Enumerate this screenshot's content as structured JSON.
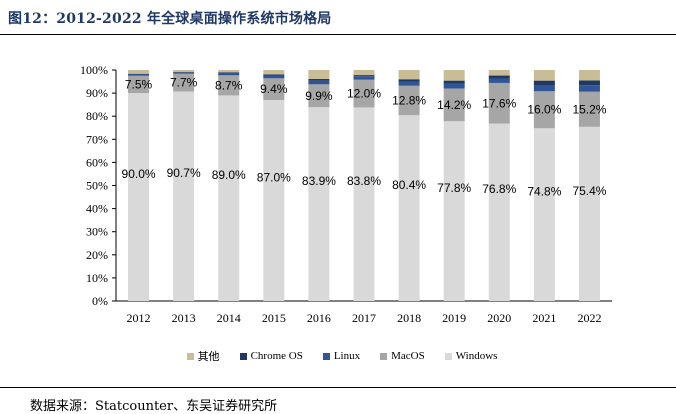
{
  "figure": {
    "title": "图12：2012-2022 年全球桌面操作系统市场格局",
    "source": "数据来源：Statcounter、东吴证券研究所"
  },
  "colors": {
    "其他": "#c9bd97",
    "Chrome OS": "#1f3864",
    "Linux": "#2f5597",
    "MacOS": "#a6a6a6",
    "Windows": "#d9d9d9"
  },
  "chart_data": {
    "type": "bar",
    "stacked": true,
    "categories": [
      "2012",
      "2013",
      "2014",
      "2015",
      "2016",
      "2017",
      "2018",
      "2019",
      "2020",
      "2021",
      "2022"
    ],
    "ylim": [
      0,
      100
    ],
    "yticks": [
      "0%",
      "10%",
      "20%",
      "30%",
      "40%",
      "50%",
      "60%",
      "70%",
      "80%",
      "90%",
      "100%"
    ],
    "legend_position": "bottom",
    "series": [
      {
        "name": "Windows",
        "values": [
          90.0,
          90.7,
          89.0,
          87.0,
          83.9,
          83.8,
          80.4,
          77.8,
          76.8,
          74.8,
          75.4
        ],
        "labels": [
          "90.0%",
          "90.7%",
          "89.0%",
          "87.0%",
          "83.9%",
          "83.8%",
          "80.4%",
          "77.8%",
          "76.8%",
          "74.8%",
          "75.4%"
        ]
      },
      {
        "name": "MacOS",
        "values": [
          7.5,
          7.7,
          8.7,
          9.4,
          9.9,
          12.0,
          12.8,
          14.2,
          17.6,
          16.0,
          15.2
        ],
        "labels": [
          "7.5%",
          "7.7%",
          "8.7%",
          "9.4%",
          "9.9%",
          "12.0%",
          "12.8%",
          "14.2%",
          "17.6%",
          "16.0%",
          "15.2%"
        ]
      },
      {
        "name": "Linux",
        "values": [
          0.8,
          0.6,
          1.0,
          1.2,
          1.6,
          1.5,
          1.8,
          2.0,
          1.9,
          2.4,
          2.8
        ]
      },
      {
        "name": "Chrome OS",
        "values": [
          0.1,
          0.2,
          0.3,
          0.5,
          0.7,
          0.5,
          1.0,
          1.4,
          1.3,
          2.2,
          2.1
        ]
      },
      {
        "name": "其他",
        "values": [
          1.6,
          0.8,
          1.0,
          1.9,
          3.9,
          2.2,
          4.0,
          4.6,
          2.4,
          4.6,
          4.5
        ]
      }
    ],
    "legend": [
      "其他",
      "Chrome OS",
      "Linux",
      "MacOS",
      "Windows"
    ]
  }
}
